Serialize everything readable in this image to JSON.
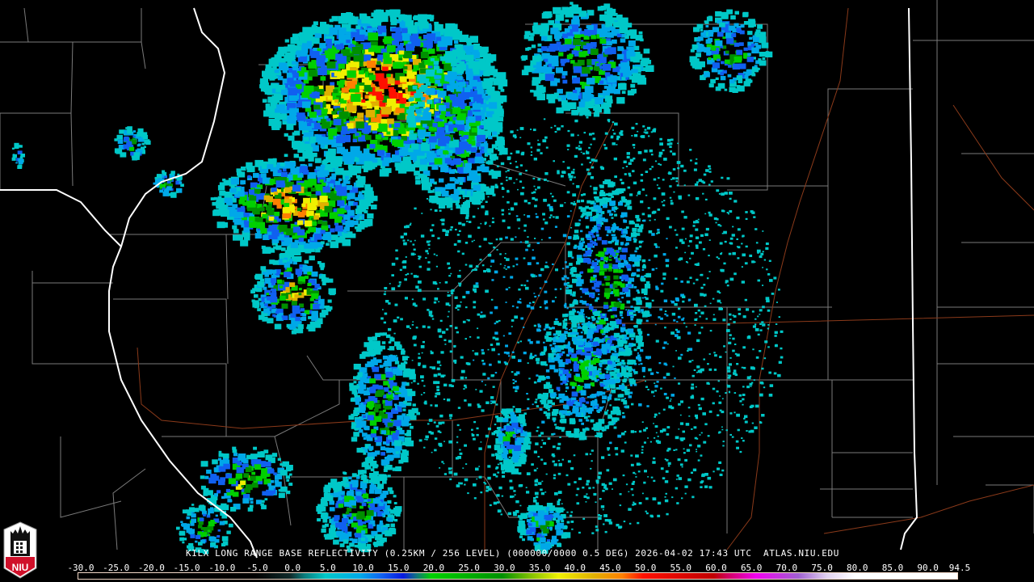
{
  "product": {
    "caption": "KILX LONG RANGE BASE REFLECTIVITY (0.25KM / 256 LEVEL) (000000/0000 0.5 DEG) 2026-04-02 17:43 UTC  ATLAS.NIU.EDU",
    "logo_text": "NIU"
  },
  "legend": {
    "unit_values": [
      "-30.0",
      "-25.0",
      "-20.0",
      "-15.0",
      "-10.0",
      "-5.0",
      "0.0",
      "5.0",
      "10.0",
      "15.0",
      "20.0",
      "25.0",
      "30.0",
      "35.0",
      "40.0",
      "45.0",
      "50.0",
      "55.0",
      "60.0",
      "65.0",
      "70.0",
      "75.0",
      "80.0",
      "85.0",
      "90.0",
      "94.5"
    ],
    "range": [
      -30,
      94.5
    ],
    "color_stops": [
      {
        "value": -30,
        "color": "#000000"
      },
      {
        "value": -5,
        "color": "#000000"
      },
      {
        "value": 0,
        "color": "#0f2a2a"
      },
      {
        "value": 2,
        "color": "#0a7a7a"
      },
      {
        "value": 5,
        "color": "#00c8c8"
      },
      {
        "value": 10,
        "color": "#00a8e8"
      },
      {
        "value": 13,
        "color": "#1060f0"
      },
      {
        "value": 16,
        "color": "#0818e0"
      },
      {
        "value": 18,
        "color": "#107878"
      },
      {
        "value": 20,
        "color": "#00d000"
      },
      {
        "value": 30,
        "color": "#009000"
      },
      {
        "value": 34,
        "color": "#80c000"
      },
      {
        "value": 38,
        "color": "#f0f000"
      },
      {
        "value": 43,
        "color": "#e0b000"
      },
      {
        "value": 47,
        "color": "#ff8000"
      },
      {
        "value": 50,
        "color": "#ff1000"
      },
      {
        "value": 60,
        "color": "#c00000"
      },
      {
        "value": 62,
        "color": "#d00060"
      },
      {
        "value": 66,
        "color": "#f000f0"
      },
      {
        "value": 72,
        "color": "#a060d0"
      },
      {
        "value": 76,
        "color": "#e0d0f0"
      },
      {
        "value": 80,
        "color": "#ffffff"
      },
      {
        "value": 94.5,
        "color": "#ffffff"
      }
    ]
  },
  "map_colors": {
    "state_border": "#ffffff",
    "county_border": "#7a7a7a",
    "highway": "#8b3a1a"
  }
}
